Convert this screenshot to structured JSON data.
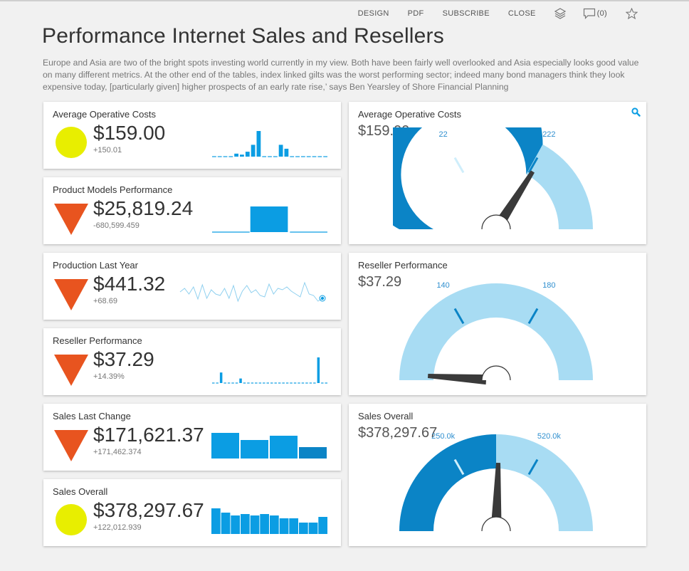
{
  "toolbar": {
    "design": "DESIGN",
    "pdf": "PDF",
    "subscribe": "SUBSCRIBE",
    "close": "CLOSE",
    "comments": "(0)"
  },
  "page": {
    "title": "Performance Internet Sales and Resellers",
    "description": "Europe and Asia are two of the bright spots investing world currently in my view. Both have been fairly well overlooked and Asia especially looks good value on many different metrics. At the other end of the tables, index linked gilts was the worst performing sector; indeed many bond managers think they look expensive today, [particularly given] higher prospects of an early rate rise,’ says Ben Yearsley of Shore Financial Planning"
  },
  "colors": {
    "yellow": "#e8ee00",
    "orange": "#e8541f",
    "blue": "#0b9de3",
    "light_blue": "#a8dcf3",
    "dark_blue": "#0b84c6"
  },
  "kpis": [
    {
      "title": "Average Operative Costs",
      "value": "$159.00",
      "delta": "+150.01",
      "indicator": "circle",
      "chart": "bars",
      "bars": [
        0,
        0,
        0,
        0,
        3,
        2,
        5,
        12,
        26,
        0,
        0,
        0,
        12,
        8,
        0,
        0,
        0,
        0,
        0,
        0,
        0
      ]
    },
    {
      "title": "Product Models Performance",
      "value": "$25,819.24",
      "delta": "-680,599.459",
      "indicator": "triangle",
      "chart": "bars",
      "bars": [
        0,
        28,
        0
      ]
    },
    {
      "title": "Production Last Year",
      "value": "$441.32",
      "delta": "+68.69",
      "indicator": "triangle",
      "chart": "line",
      "line": [
        15,
        10,
        18,
        8,
        25,
        5,
        24,
        12,
        18,
        20,
        10,
        24,
        6,
        28,
        14,
        6,
        16,
        12,
        20,
        22,
        4,
        18,
        10,
        12,
        8,
        14,
        18,
        22,
        2,
        18,
        20,
        28,
        24
      ]
    },
    {
      "title": "Reseller Performance",
      "value": "$37.29",
      "delta": "+14.39%",
      "indicator": "triangle",
      "chart": "bars",
      "bars": [
        0,
        0,
        14,
        0,
        0,
        0,
        0,
        6,
        0,
        0,
        0,
        0,
        0,
        0,
        0,
        0,
        0,
        0,
        0,
        0,
        0,
        0,
        0,
        0,
        0,
        0,
        0,
        34,
        0,
        0
      ]
    },
    {
      "title": "Sales Last Change",
      "value": "$171,621.37",
      "delta": "+171,462.374",
      "indicator": "triangle",
      "chart": "bars",
      "bars": [
        36,
        26,
        32,
        16
      ]
    },
    {
      "title": "Sales Overall",
      "value": "$378,297.67",
      "delta": "+122,012.939",
      "indicator": "circle",
      "chart": "bars",
      "bars": [
        36,
        30,
        26,
        28,
        26,
        28,
        26,
        22,
        22,
        16,
        16,
        24
      ]
    }
  ],
  "gauges": [
    {
      "title": "Average Operative Costs",
      "value": "$159.00",
      "tick_low": "22",
      "tick_high": "222",
      "fraction": 0.68,
      "dark_fraction": 0.66
    },
    {
      "title": "Reseller Performance",
      "value": "$37.29",
      "tick_low": "140",
      "tick_high": "180",
      "fraction": 0.02,
      "dark_fraction": 0.0
    },
    {
      "title": "Sales Overall",
      "value": "$378,297.67",
      "tick_low": "250.0k",
      "tick_high": "520.0k",
      "fraction": 0.51,
      "dark_fraction": 0.5
    }
  ]
}
